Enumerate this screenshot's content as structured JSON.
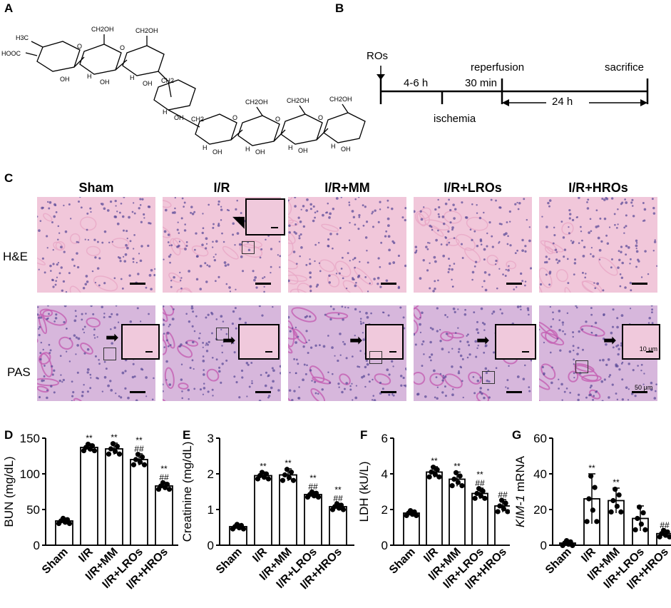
{
  "panels": {
    "A": "A",
    "B": "B",
    "C": "C",
    "D": "D",
    "E": "E",
    "F": "F",
    "G": "G"
  },
  "structure": {
    "labels": [
      "H3C",
      "HOOC",
      "CH2OH",
      "CH2OH",
      "CH2",
      "CH2",
      "CH2OH",
      "CH2OH",
      "CH2OH",
      "OH",
      "H",
      "O"
    ]
  },
  "timeline": {
    "ros_label": "ROs",
    "phase1": "4-6 h",
    "phase2": "30 min",
    "reperfusion": "reperfusion",
    "sacrifice": "sacrifice",
    "ischemia": "ischemia",
    "duration": "24 h"
  },
  "histology": {
    "groups": [
      "Sham",
      "I/R",
      "I/R+MM",
      "I/R+LROs",
      "I/R+HROs"
    ],
    "rows": [
      "H&E",
      "PAS"
    ],
    "scale_inset": "10 μm",
    "scale_main": "50 μm"
  },
  "colors": {
    "he_bg": "#f1c7da",
    "he_nuclei": "#5d4d9a",
    "pas_bg": "#d7b7dc",
    "pas_tubule": "#c45fb3"
  },
  "chart_data": [
    {
      "type": "bar",
      "panel": "D",
      "ylabel": "BUN (mg/dL)",
      "ylim": [
        0,
        150
      ],
      "yticks": [
        0,
        50,
        100,
        150
      ],
      "categories": [
        "Sham",
        "I/R",
        "I/R+MM",
        "I/R+LROs",
        "I/R+HROs"
      ],
      "values": [
        34,
        137,
        135,
        120,
        83
      ],
      "errors": [
        4,
        5,
        8,
        8,
        5
      ],
      "annotations": [
        [
          "",
          ""
        ],
        [
          "**",
          ""
        ],
        [
          "**",
          ""
        ],
        [
          "**",
          "##"
        ],
        [
          "**",
          "##"
        ]
      ]
    },
    {
      "type": "bar",
      "panel": "E",
      "ylabel": "Creatinine (mg/dL)",
      "ylim": [
        0,
        3
      ],
      "yticks": [
        0,
        1,
        2,
        3
      ],
      "categories": [
        "Sham",
        "I/R",
        "I/R+MM",
        "I/R+LROs",
        "I/R+HROs"
      ],
      "values": [
        0.52,
        1.95,
        1.97,
        1.42,
        1.08
      ],
      "errors": [
        0.07,
        0.1,
        0.17,
        0.08,
        0.09
      ],
      "annotations": [
        [
          "",
          ""
        ],
        [
          "**",
          ""
        ],
        [
          "**",
          ""
        ],
        [
          "**",
          "##"
        ],
        [
          "**",
          "##"
        ]
      ]
    },
    {
      "type": "bar",
      "panel": "F",
      "ylabel": "LDH (kU/L)",
      "ylim": [
        0,
        6
      ],
      "yticks": [
        0,
        2,
        4,
        6
      ],
      "categories": [
        "Sham",
        "I/R",
        "I/R+MM",
        "I/R+LROs",
        "I/R+HROs"
      ],
      "values": [
        1.8,
        4.1,
        3.7,
        2.9,
        2.2
      ],
      "errors": [
        0.15,
        0.3,
        0.4,
        0.3,
        0.35
      ],
      "annotations": [
        [
          "",
          ""
        ],
        [
          "**",
          ""
        ],
        [
          "**",
          ""
        ],
        [
          "**",
          "##"
        ],
        [
          "",
          "##"
        ]
      ]
    },
    {
      "type": "bar",
      "panel": "G",
      "ylabel": "KIM-1 mRNA",
      "ylim": [
        0,
        60
      ],
      "yticks": [
        0,
        20,
        40,
        60
      ],
      "categories": [
        "Sham",
        "I/R",
        "I/R+MM",
        "I/R+LROs",
        "I/R+HROs"
      ],
      "values": [
        1.2,
        26,
        25,
        15,
        6.5
      ],
      "errors": [
        1.5,
        14,
        7,
        7,
        2
      ],
      "annotations": [
        [
          "",
          ""
        ],
        [
          "**",
          ""
        ],
        [
          "**",
          ""
        ],
        [
          "",
          ""
        ],
        [
          "",
          "##"
        ]
      ]
    }
  ]
}
